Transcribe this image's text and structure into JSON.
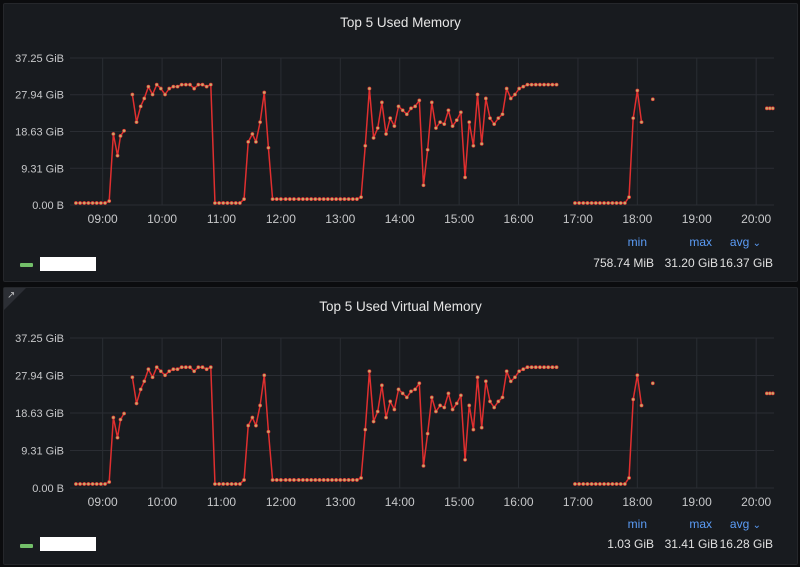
{
  "panels": [
    {
      "title": "Top 5 Used Memory",
      "legend": {
        "color": "#73bf69",
        "min_label": "min",
        "max_label": "max",
        "avg_label": "avg",
        "min": "758.74 MiB",
        "max": "31.20 GiB",
        "avg": "16.37 GiB"
      }
    },
    {
      "title": "Top 5 Used Virtual Memory",
      "legend": {
        "color": "#73bf69",
        "min_label": "min",
        "max_label": "max",
        "avg_label": "avg",
        "min": "1.03 GiB",
        "max": "31.41 GiB",
        "avg": "16.28 GiB"
      }
    }
  ],
  "icons": {
    "expand": "external-link-icon",
    "chevron": "chevron-down-icon"
  },
  "chart_data": [
    {
      "type": "line",
      "title": "Top 5 Used Memory",
      "line_color": "#e02f2f",
      "point_color": "#c8a96a",
      "ylim": [
        0,
        37.25
      ],
      "y_ticks": [
        0,
        9.31,
        18.63,
        27.94,
        37.25
      ],
      "y_tick_labels": [
        "0.00 B",
        "9.31 GiB",
        "18.63 GiB",
        "27.94 GiB",
        "37.25 GiB"
      ],
      "xlim": [
        8.45,
        20.3
      ],
      "x_ticks": [
        9,
        10,
        11,
        12,
        13,
        14,
        15,
        16,
        17,
        18,
        19,
        20
      ],
      "x_tick_labels": [
        "09:00",
        "10:00",
        "11:00",
        "12:00",
        "13:00",
        "14:00",
        "15:00",
        "16:00",
        "17:00",
        "18:00",
        "19:00",
        "20:00"
      ],
      "series": [
        {
          "x": [
            8.55,
            8.62,
            8.69,
            8.76,
            8.83,
            8.9,
            8.97,
            9.04,
            9.11,
            9.18,
            9.25,
            9.3,
            9.36,
            9.43,
            9.5,
            9.57,
            9.64,
            9.7,
            9.77,
            9.84,
            9.91,
            9.98,
            10.05,
            10.12,
            10.19,
            10.26,
            10.33,
            10.4,
            10.47,
            10.54,
            10.61,
            10.68,
            10.75,
            10.82,
            10.89,
            10.96,
            11.03,
            11.1,
            11.17,
            11.24,
            11.31,
            11.38,
            11.45,
            11.52,
            11.58,
            11.65,
            11.72,
            11.79,
            11.86,
            11.93,
            12.0,
            12.08,
            12.15,
            12.22,
            12.3,
            12.37,
            12.44,
            12.51,
            12.58,
            12.65,
            12.72,
            12.79,
            12.86,
            12.93,
            13.0,
            13.07,
            13.14,
            13.21,
            13.28,
            13.35,
            13.42,
            13.49,
            13.56,
            13.63,
            13.7,
            13.77,
            13.84,
            13.91,
            13.98,
            14.05,
            14.12,
            14.19,
            14.26,
            14.33,
            14.4,
            14.47,
            14.54,
            14.61,
            14.68,
            14.75,
            14.82,
            14.89,
            14.96,
            15.03,
            15.1,
            15.17,
            15.24,
            15.31,
            15.38,
            15.45,
            15.52,
            15.59,
            15.66,
            15.73,
            15.8,
            15.87,
            15.94,
            16.01,
            16.08,
            16.15,
            16.22,
            16.29,
            16.36,
            16.43,
            16.5,
            16.57,
            16.64
          ],
          "y": [
            0.5,
            0.5,
            0.5,
            0.5,
            0.5,
            0.5,
            0.5,
            0.5,
            1.0,
            18.0,
            12.5,
            17.5,
            18.8,
            null,
            28.0,
            21.0,
            25.0,
            27.0,
            30.0,
            28.0,
            30.5,
            29.5,
            28.0,
            29.5,
            30.0,
            30.0,
            30.5,
            30.5,
            30.5,
            29.5,
            30.5,
            30.5,
            30.0,
            30.5,
            0.5,
            0.5,
            0.5,
            0.5,
            0.5,
            0.5,
            0.5,
            1.5,
            16.0,
            18.0,
            16.0,
            21.0,
            28.5,
            14.5,
            1.5,
            1.5,
            1.5,
            1.5,
            1.5,
            1.5,
            1.5,
            1.5,
            1.5,
            1.5,
            1.5,
            1.5,
            1.5,
            1.5,
            1.5,
            1.5,
            1.5,
            1.5,
            1.5,
            1.5,
            1.5,
            2.0,
            15.0,
            29.5,
            17.0,
            19.5,
            26.0,
            18.0,
            22.0,
            20.0,
            25.0,
            24.0,
            23.0,
            24.5,
            25.0,
            26.5,
            5.0,
            14.0,
            26.0,
            19.5,
            21.0,
            20.5,
            24.0,
            20.0,
            21.5,
            23.5,
            7.0,
            21.0,
            15.0,
            28.0,
            15.5,
            27.0,
            22.0,
            20.5,
            22.0,
            23.0,
            29.5,
            27.0,
            28.0,
            29.5,
            30.0,
            30.5,
            30.5,
            30.5,
            30.5,
            30.5,
            30.5,
            30.5,
            30.5
          ]
        },
        {
          "x": [
            16.95,
            17.02,
            17.09,
            17.16,
            17.23,
            17.3,
            17.37,
            17.44,
            17.51,
            17.58,
            17.65,
            17.72,
            17.79,
            17.86,
            17.93,
            18.0,
            18.07,
            18.14,
            18.21,
            18.26
          ],
          "y": [
            0.5,
            0.5,
            0.5,
            0.5,
            0.5,
            0.5,
            0.5,
            0.5,
            0.5,
            0.5,
            0.5,
            0.5,
            0.5,
            2.0,
            22.0,
            29.0,
            21.0,
            null,
            null,
            26.8
          ]
        },
        {
          "x": [
            20.18,
            20.23,
            20.28
          ],
          "y": [
            24.5,
            24.5,
            24.5
          ]
        }
      ]
    },
    {
      "type": "line",
      "title": "Top 5 Used Virtual Memory",
      "line_color": "#e02f2f",
      "point_color": "#c8a96a",
      "ylim": [
        0,
        37.25
      ],
      "y_ticks": [
        0,
        9.31,
        18.63,
        27.94,
        37.25
      ],
      "y_tick_labels": [
        "0.00 B",
        "9.31 GiB",
        "18.63 GiB",
        "27.94 GiB",
        "37.25 GiB"
      ],
      "xlim": [
        8.45,
        20.3
      ],
      "x_ticks": [
        9,
        10,
        11,
        12,
        13,
        14,
        15,
        16,
        17,
        18,
        19,
        20
      ],
      "x_tick_labels": [
        "09:00",
        "10:00",
        "11:00",
        "12:00",
        "13:00",
        "14:00",
        "15:00",
        "16:00",
        "17:00",
        "18:00",
        "19:00",
        "20:00"
      ],
      "series": [
        {
          "x": [
            8.55,
            8.62,
            8.69,
            8.76,
            8.83,
            8.9,
            8.97,
            9.04,
            9.11,
            9.18,
            9.25,
            9.3,
            9.36,
            9.43,
            9.5,
            9.57,
            9.64,
            9.7,
            9.77,
            9.84,
            9.91,
            9.98,
            10.05,
            10.12,
            10.19,
            10.26,
            10.33,
            10.4,
            10.47,
            10.54,
            10.61,
            10.68,
            10.75,
            10.82,
            10.89,
            10.96,
            11.03,
            11.1,
            11.17,
            11.24,
            11.31,
            11.38,
            11.45,
            11.52,
            11.58,
            11.65,
            11.72,
            11.79,
            11.86,
            11.93,
            12.0,
            12.08,
            12.15,
            12.22,
            12.3,
            12.37,
            12.44,
            12.51,
            12.58,
            12.65,
            12.72,
            12.79,
            12.86,
            12.93,
            13.0,
            13.07,
            13.14,
            13.21,
            13.28,
            13.35,
            13.42,
            13.49,
            13.56,
            13.63,
            13.7,
            13.77,
            13.84,
            13.91,
            13.98,
            14.05,
            14.12,
            14.19,
            14.26,
            14.33,
            14.4,
            14.47,
            14.54,
            14.61,
            14.68,
            14.75,
            14.82,
            14.89,
            14.96,
            15.03,
            15.1,
            15.17,
            15.24,
            15.31,
            15.38,
            15.45,
            15.52,
            15.59,
            15.66,
            15.73,
            15.8,
            15.87,
            15.94,
            16.01,
            16.08,
            16.15,
            16.22,
            16.29,
            16.36,
            16.43,
            16.5,
            16.57,
            16.64
          ],
          "y": [
            1.0,
            1.0,
            1.0,
            1.0,
            1.0,
            1.0,
            1.0,
            1.0,
            1.5,
            17.5,
            12.5,
            17.0,
            18.5,
            null,
            27.5,
            21.0,
            24.5,
            26.5,
            29.5,
            27.5,
            30.0,
            29.0,
            28.0,
            29.0,
            29.5,
            29.5,
            30.0,
            30.0,
            30.0,
            29.0,
            30.0,
            30.0,
            29.5,
            30.0,
            1.0,
            1.0,
            1.0,
            1.0,
            1.0,
            1.0,
            1.0,
            2.0,
            15.5,
            17.5,
            15.5,
            20.5,
            28.0,
            14.0,
            2.0,
            2.0,
            2.0,
            2.0,
            2.0,
            2.0,
            2.0,
            2.0,
            2.0,
            2.0,
            2.0,
            2.0,
            2.0,
            2.0,
            2.0,
            2.0,
            2.0,
            2.0,
            2.0,
            2.0,
            2.0,
            2.5,
            14.5,
            29.0,
            16.5,
            19.0,
            25.5,
            17.5,
            21.5,
            19.5,
            24.5,
            23.5,
            22.5,
            24.0,
            24.5,
            26.0,
            5.5,
            13.5,
            22.5,
            19.0,
            20.5,
            20.0,
            23.5,
            19.5,
            21.0,
            23.0,
            7.0,
            20.5,
            14.5,
            27.5,
            15.0,
            26.5,
            21.5,
            20.0,
            21.5,
            22.5,
            29.0,
            26.5,
            27.5,
            29.0,
            29.5,
            30.0,
            30.0,
            30.0,
            30.0,
            30.0,
            30.0,
            30.0,
            30.0
          ]
        },
        {
          "x": [
            16.95,
            17.02,
            17.09,
            17.16,
            17.23,
            17.3,
            17.37,
            17.44,
            17.51,
            17.58,
            17.65,
            17.72,
            17.79,
            17.86,
            17.93,
            18.0,
            18.07,
            18.14,
            18.21,
            18.26
          ],
          "y": [
            1.0,
            1.0,
            1.0,
            1.0,
            1.0,
            1.0,
            1.0,
            1.0,
            1.0,
            1.0,
            1.0,
            1.0,
            1.0,
            2.5,
            22.0,
            28.0,
            20.5,
            null,
            null,
            26.0
          ]
        },
        {
          "x": [
            20.18,
            20.23,
            20.28
          ],
          "y": [
            23.5,
            23.5,
            23.5
          ]
        }
      ]
    }
  ]
}
